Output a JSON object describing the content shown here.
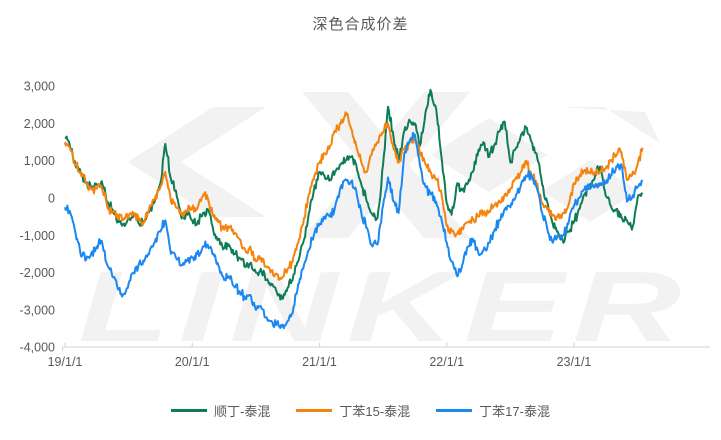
{
  "watermark": {
    "text": "LINKER"
  },
  "chart_data": {
    "type": "line",
    "title": "深色合成价差",
    "xlabel": "",
    "ylabel": "",
    "grid": false,
    "legend_position": "bottom",
    "ylim": [
      -4000,
      3000
    ],
    "y_ticks": [
      {
        "label": "3,000",
        "value": 3000
      },
      {
        "label": "2,000",
        "value": 2000
      },
      {
        "label": "1,000",
        "value": 1000
      },
      {
        "label": "0",
        "value": 0
      },
      {
        "label": "-1,000",
        "value": -1000
      },
      {
        "label": "-2,000",
        "value": -2000
      },
      {
        "label": "-3,000",
        "value": -3000
      },
      {
        "label": "-4,000",
        "value": -4000
      }
    ],
    "x_ticks": [
      {
        "label": "19/1/1",
        "pos": 2019
      },
      {
        "label": "20/1/1",
        "pos": 2020
      },
      {
        "label": "21/1/1",
        "pos": 2021
      },
      {
        "label": "22/1/1",
        "pos": 2022
      },
      {
        "label": "23/1/1",
        "pos": 2023
      }
    ],
    "dates": [
      "2019-01-01",
      "2019-01-15",
      "2019-02-01",
      "2019-02-15",
      "2019-03-01",
      "2019-03-15",
      "2019-04-01",
      "2019-04-15",
      "2019-05-01",
      "2019-05-15",
      "2019-06-01",
      "2019-06-15",
      "2019-07-01",
      "2019-07-15",
      "2019-08-01",
      "2019-08-15",
      "2019-09-01",
      "2019-09-15",
      "2019-10-01",
      "2019-10-15",
      "2019-11-01",
      "2019-11-15",
      "2019-12-01",
      "2019-12-15",
      "2020-01-01",
      "2020-01-15",
      "2020-02-01",
      "2020-02-15",
      "2020-03-01",
      "2020-03-15",
      "2020-04-01",
      "2020-04-15",
      "2020-05-01",
      "2020-05-15",
      "2020-06-01",
      "2020-06-15",
      "2020-07-01",
      "2020-07-15",
      "2020-08-01",
      "2020-08-15",
      "2020-09-01",
      "2020-09-15",
      "2020-10-01",
      "2020-10-15",
      "2020-11-01",
      "2020-11-15",
      "2020-12-01",
      "2020-12-15",
      "2021-01-01",
      "2021-01-15",
      "2021-02-01",
      "2021-02-15",
      "2021-03-01",
      "2021-03-15",
      "2021-04-01",
      "2021-04-15",
      "2021-05-01",
      "2021-05-15",
      "2021-06-01",
      "2021-06-15",
      "2021-07-01",
      "2021-07-15",
      "2021-08-01",
      "2021-08-15",
      "2021-09-01",
      "2021-09-15",
      "2021-10-01",
      "2021-10-15",
      "2021-11-01",
      "2021-11-15",
      "2021-12-01",
      "2021-12-15",
      "2022-01-01",
      "2022-01-15",
      "2022-02-01",
      "2022-02-15",
      "2022-03-01",
      "2022-03-15",
      "2022-04-01",
      "2022-04-15",
      "2022-05-01",
      "2022-05-15",
      "2022-06-01",
      "2022-06-15",
      "2022-07-01",
      "2022-07-15",
      "2022-08-01",
      "2022-08-15",
      "2022-09-01",
      "2022-09-15",
      "2022-10-01",
      "2022-10-15",
      "2022-11-01",
      "2022-11-15",
      "2022-12-01",
      "2022-12-15",
      "2023-01-01",
      "2023-01-15",
      "2023-02-01",
      "2023-02-15",
      "2023-03-01",
      "2023-03-15",
      "2023-04-01",
      "2023-04-15",
      "2023-05-01",
      "2023-05-15",
      "2023-06-01",
      "2023-06-15",
      "2023-07-01",
      "2023-07-15"
    ],
    "series": [
      {
        "name": "顺丁-泰混",
        "color": "#0e7d57",
        "values": [
          1600,
          1400,
          850,
          700,
          400,
          300,
          350,
          450,
          -100,
          -300,
          -650,
          -700,
          -550,
          -450,
          -700,
          -650,
          -300,
          -100,
          400,
          1450,
          500,
          200,
          -550,
          -400,
          -600,
          -700,
          -400,
          -300,
          -900,
          -1100,
          -1350,
          -1250,
          -1500,
          -1600,
          -1850,
          -1750,
          -2000,
          -1900,
          -2200,
          -2300,
          -2550,
          -2700,
          -2400,
          -2200,
          -1700,
          -1200,
          -400,
          200,
          700,
          600,
          500,
          700,
          900,
          1000,
          1100,
          900,
          300,
          -100,
          -450,
          -550,
          900,
          2450,
          1600,
          1000,
          1800,
          2100,
          2000,
          1400,
          2300,
          2900,
          2400,
          1200,
          -150,
          -450,
          400,
          200,
          400,
          700,
          1300,
          1500,
          1100,
          1400,
          1800,
          2050,
          950,
          1300,
          1700,
          1900,
          1500,
          1200,
          350,
          -100,
          -700,
          -900,
          -1200,
          -900,
          -650,
          -300,
          100,
          300,
          600,
          840,
          50,
          -200,
          -300,
          -500,
          -600,
          -850,
          0,
          100
        ]
      },
      {
        "name": "丁苯15-泰混",
        "color": "#f6830d",
        "values": [
          1500,
          1350,
          900,
          700,
          400,
          250,
          250,
          300,
          -250,
          -400,
          -500,
          -600,
          -500,
          -400,
          -600,
          -650,
          -200,
          -50,
          300,
          700,
          -100,
          -250,
          -450,
          -350,
          -250,
          -300,
          50,
          0,
          -500,
          -650,
          -850,
          -800,
          -950,
          -1100,
          -1400,
          -1300,
          -1700,
          -1600,
          -1850,
          -1950,
          -2050,
          -2150,
          -1900,
          -1700,
          -1200,
          -700,
          100,
          500,
          950,
          1200,
          1400,
          1800,
          2000,
          2300,
          1850,
          1400,
          900,
          700,
          1300,
          1500,
          1750,
          2000,
          1300,
          950,
          1300,
          1450,
          1600,
          1200,
          900,
          700,
          500,
          200,
          -750,
          -900,
          -950,
          -800,
          -650,
          -550,
          -500,
          -400,
          -350,
          -200,
          -100,
          100,
          250,
          500,
          700,
          1000,
          600,
          400,
          -150,
          -300,
          -450,
          -500,
          -400,
          -200,
          400,
          550,
          750,
          700,
          650,
          700,
          800,
          1000,
          1150,
          1240,
          480,
          600,
          900,
          1350
        ]
      },
      {
        "name": "丁苯17-泰混",
        "color": "#1b87f0",
        "values": [
          -250,
          -350,
          -950,
          -1500,
          -1650,
          -1500,
          -1300,
          -1150,
          -1800,
          -2100,
          -2450,
          -2600,
          -2300,
          -2000,
          -1750,
          -1700,
          -1400,
          -1200,
          -900,
          -600,
          -1500,
          -1600,
          -1800,
          -1700,
          -1600,
          -1500,
          -1300,
          -1250,
          -1500,
          -1800,
          -2200,
          -2100,
          -2400,
          -2500,
          -2700,
          -2600,
          -3000,
          -2900,
          -3200,
          -3300,
          -3350,
          -3450,
          -3300,
          -3100,
          -2300,
          -1900,
          -1400,
          -1000,
          -700,
          -500,
          -500,
          -250,
          300,
          500,
          450,
          200,
          -500,
          -800,
          -1300,
          -1250,
          -200,
          550,
          -100,
          -400,
          1200,
          1500,
          1700,
          900,
          300,
          100,
          -100,
          -500,
          -1200,
          -1700,
          -2100,
          -1800,
          -1300,
          -1100,
          -1500,
          -1400,
          -1200,
          -900,
          -600,
          -300,
          -250,
          0,
          350,
          600,
          600,
          300,
          -400,
          -800,
          -1200,
          -1000,
          -1000,
          -700,
          -200,
          0,
          250,
          300,
          350,
          400,
          400,
          600,
          850,
          900,
          -100,
          0,
          300,
          440
        ]
      }
    ],
    "style": {
      "text_color": "#595959",
      "axis_color": "#d9d9d9",
      "watermark_color": "#f2f2f2",
      "line_width": 2
    }
  }
}
